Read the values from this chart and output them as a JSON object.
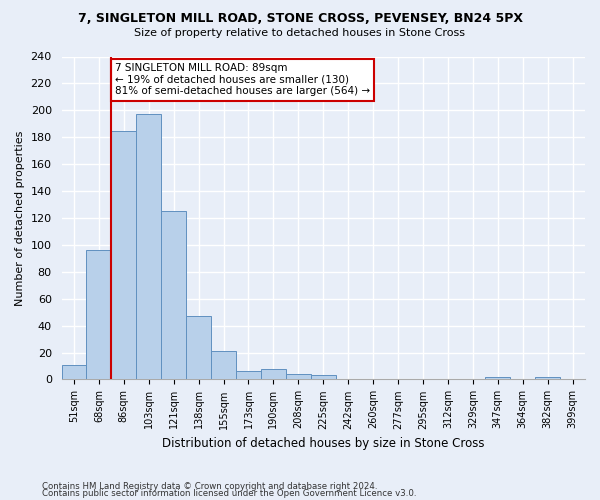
{
  "title_line1": "7, SINGLETON MILL ROAD, STONE CROSS, PEVENSEY, BN24 5PX",
  "title_line2": "Size of property relative to detached houses in Stone Cross",
  "xlabel": "Distribution of detached houses by size in Stone Cross",
  "ylabel": "Number of detached properties",
  "bin_labels": [
    "51sqm",
    "68sqm",
    "86sqm",
    "103sqm",
    "121sqm",
    "138sqm",
    "155sqm",
    "173sqm",
    "190sqm",
    "208sqm",
    "225sqm",
    "242sqm",
    "260sqm",
    "277sqm",
    "295sqm",
    "312sqm",
    "329sqm",
    "347sqm",
    "364sqm",
    "382sqm",
    "399sqm"
  ],
  "bar_values": [
    11,
    96,
    185,
    197,
    125,
    47,
    21,
    6,
    8,
    4,
    3,
    0,
    0,
    0,
    0,
    0,
    0,
    2,
    0,
    2,
    0
  ],
  "bar_color": "#b8d0ea",
  "bar_edge_color": "#6090c0",
  "vline_x_index": 2,
  "vline_color": "#cc0000",
  "annotation_text": "7 SINGLETON MILL ROAD: 89sqm\n← 19% of detached houses are smaller (130)\n81% of semi-detached houses are larger (564) →",
  "annotation_box_color": "#ffffff",
  "annotation_box_edge": "#cc0000",
  "ylim": [
    0,
    240
  ],
  "yticks": [
    0,
    20,
    40,
    60,
    80,
    100,
    120,
    140,
    160,
    180,
    200,
    220,
    240
  ],
  "background_color": "#e8eef8",
  "grid_color": "#ffffff",
  "footer_line1": "Contains HM Land Registry data © Crown copyright and database right 2024.",
  "footer_line2": "Contains public sector information licensed under the Open Government Licence v3.0."
}
